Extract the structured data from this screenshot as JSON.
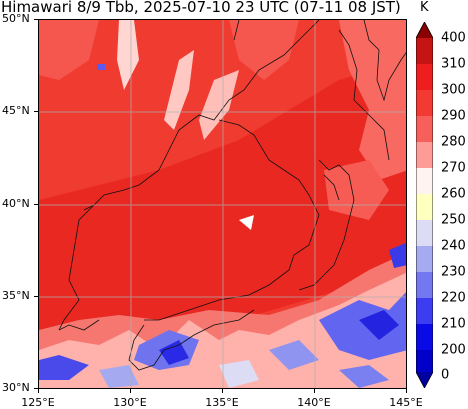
{
  "title": "Himawari 8/9 Tbb, 2025-07-10 23 UTC (07-11 08 JST)",
  "map": {
    "lat_labels": [
      "50°N",
      "45°N",
      "40°N",
      "35°N",
      "30°N"
    ],
    "lon_labels": [
      "125°E",
      "130°E",
      "135°E",
      "140°E",
      "145°E"
    ],
    "extent": {
      "lon": [
        125,
        145
      ],
      "lat": [
        30,
        50
      ]
    },
    "grid": true
  },
  "colorbar": {
    "unit": "K",
    "ticks": [
      "400",
      "310",
      "300",
      "290",
      "280",
      "270",
      "260",
      "250",
      "240",
      "230",
      "220",
      "210",
      "200",
      "0"
    ],
    "colors": [
      "#8b0000",
      "#c41414",
      "#ee1e1e",
      "#f23a32",
      "#f75f5a",
      "#ff9b96",
      "#fff3f0",
      "#ffffc0",
      "#dcdcf5",
      "#a6aaf0",
      "#7378f0",
      "#3c3cf0",
      "#0a0ae6",
      "#0000a0"
    ]
  }
}
